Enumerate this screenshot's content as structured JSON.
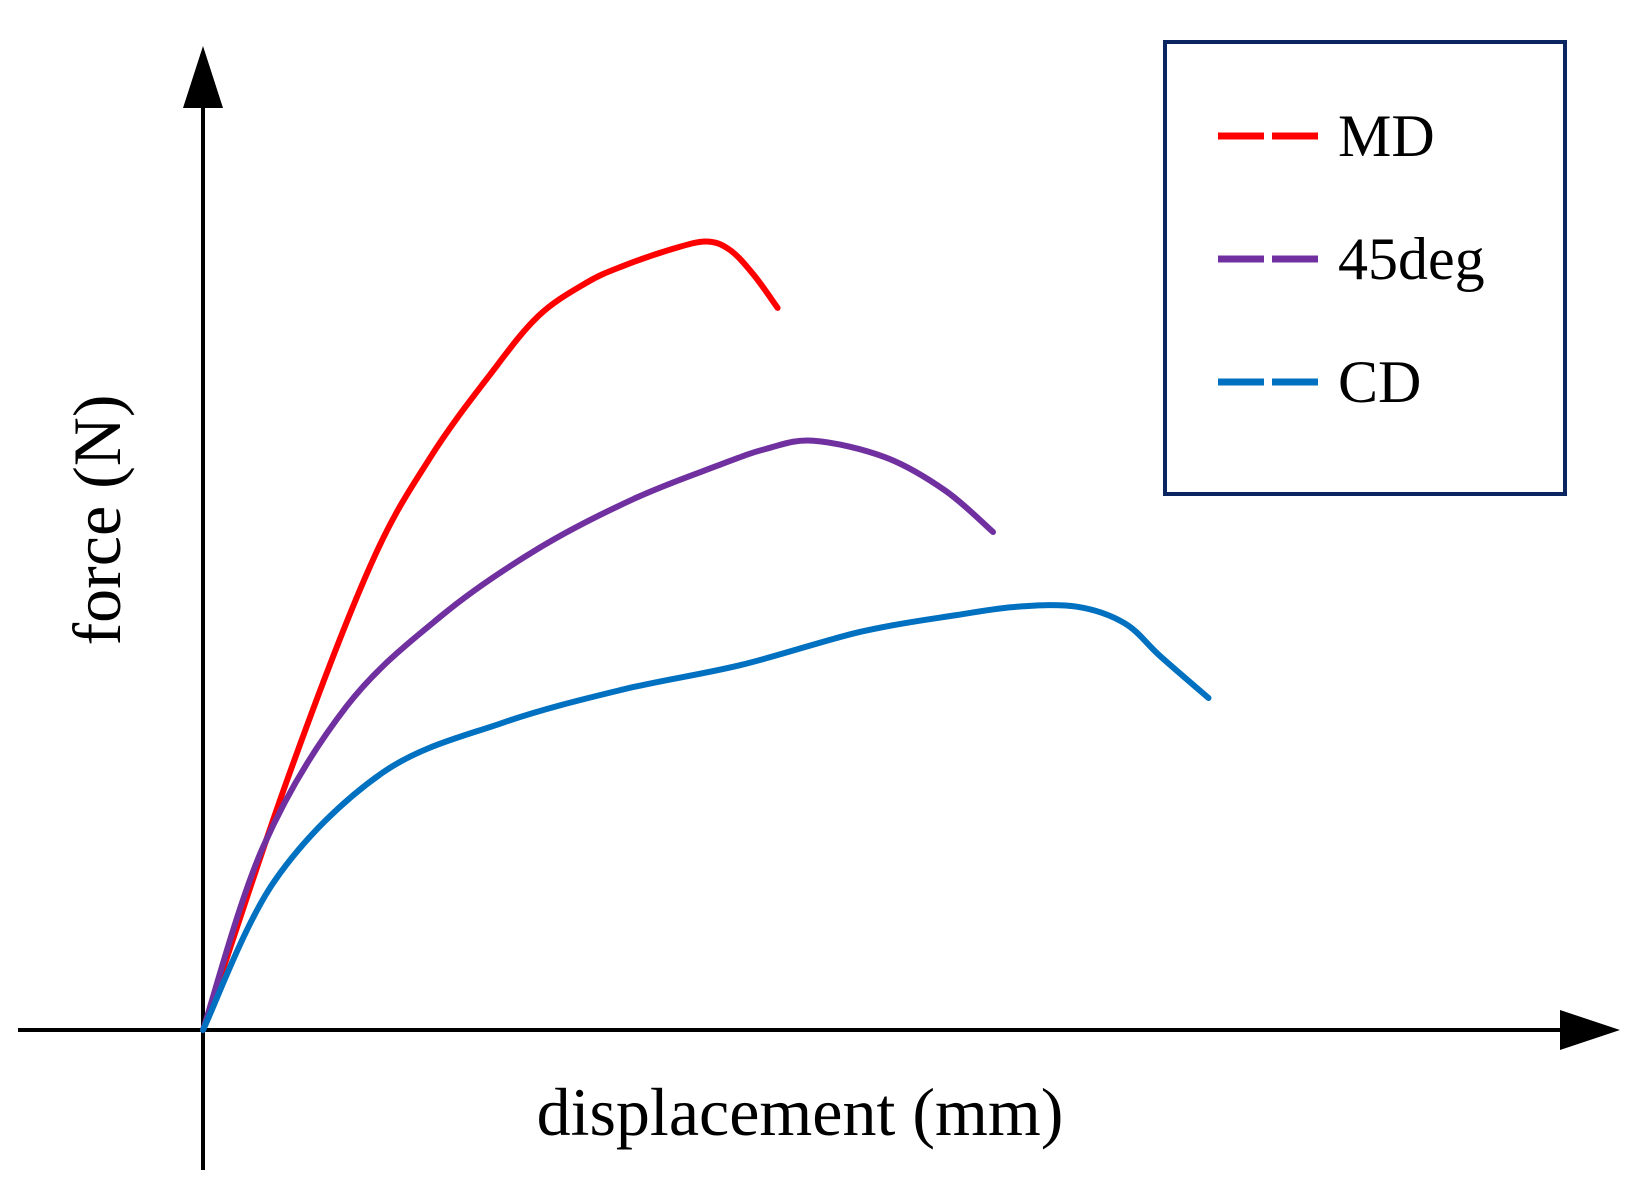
{
  "chart_data": {
    "type": "line",
    "title": "",
    "xlabel": "displacement (mm)",
    "ylabel": "force (N)",
    "xlim": [
      0,
      100
    ],
    "ylim": [
      0,
      100
    ],
    "ticks": false,
    "grid": false,
    "legend_position": "top-right",
    "series": [
      {
        "name": "MD",
        "color": "#ff0000",
        "x": [
          0,
          7,
          14,
          19,
          24,
          28,
          32,
          35,
          39,
          42,
          44,
          46,
          48
        ],
        "y": [
          0,
          30,
          56,
          69,
          79,
          86,
          90,
          92,
          94,
          95,
          94,
          91,
          87
        ]
      },
      {
        "name": "45deg",
        "color": "#7030a0",
        "x": [
          0,
          5,
          12,
          20,
          28,
          36,
          43,
          47,
          51,
          57,
          62,
          66
        ],
        "y": [
          0,
          22,
          39,
          50,
          58,
          64,
          68,
          70,
          71,
          69,
          65,
          60
        ]
      },
      {
        "name": "CD",
        "color": "#0070c0",
        "x": [
          0,
          6,
          15,
          25,
          35,
          45,
          55,
          63,
          68,
          73,
          77,
          80,
          84
        ],
        "y": [
          0,
          18,
          31,
          37,
          41,
          44,
          48,
          50,
          51,
          51,
          49,
          45,
          40
        ]
      }
    ]
  }
}
